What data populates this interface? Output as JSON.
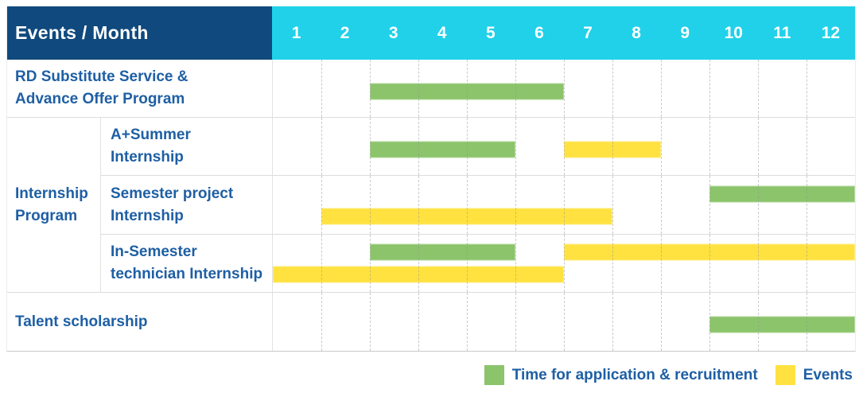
{
  "header": {
    "corner_label": "Events / Month",
    "months": [
      "1",
      "2",
      "3",
      "4",
      "5",
      "6",
      "7",
      "8",
      "9",
      "10",
      "11",
      "12"
    ]
  },
  "colors": {
    "header_navy": "#10497d",
    "header_cyan": "#20d1e9",
    "application_green": "#8bc46a",
    "events_yellow": "#ffe23f",
    "label_blue": "#1e5fa4"
  },
  "legend": {
    "items": [
      {
        "label": "Time for application & recruitment",
        "color_key": "application_green"
      },
      {
        "label": "Events",
        "color_key": "events_yellow"
      }
    ]
  },
  "chart_data": {
    "type": "gantt",
    "unit": "month",
    "x_range": [
      1,
      12
    ],
    "group_label_lines": [
      "Internship",
      "Program"
    ],
    "rows": [
      {
        "label_lines": [
          "RD Substitute Service &",
          "Advance Offer Program"
        ],
        "group": "",
        "bars": [
          {
            "kind": "application & recruitment",
            "color_key": "application_green",
            "start_month": 3,
            "end_month": 6,
            "lane": "middle"
          }
        ]
      },
      {
        "label_lines": [
          "A+Summer",
          "Internship"
        ],
        "group": "Internship Program",
        "bars": [
          {
            "kind": "application & recruitment",
            "color_key": "application_green",
            "start_month": 3,
            "end_month": 5,
            "lane": "middle"
          },
          {
            "kind": "events",
            "color_key": "events_yellow",
            "start_month": 7,
            "end_month": 8,
            "lane": "middle"
          }
        ]
      },
      {
        "label_lines": [
          "Semester project",
          "Internship"
        ],
        "group": "Internship Program",
        "bars": [
          {
            "kind": "application & recruitment",
            "color_key": "application_green",
            "start_month": 10,
            "end_month": 12,
            "lane": "top"
          },
          {
            "kind": "events",
            "color_key": "events_yellow",
            "start_month": 2,
            "end_month": 7,
            "lane": "bottom"
          }
        ]
      },
      {
        "label_lines": [
          "In-Semester",
          "technician Internship"
        ],
        "group": "Internship Program",
        "bars": [
          {
            "kind": "application & recruitment",
            "color_key": "application_green",
            "start_month": 3,
            "end_month": 5,
            "lane": "top"
          },
          {
            "kind": "events",
            "color_key": "events_yellow",
            "start_month": 7,
            "end_month": 12,
            "lane": "top"
          },
          {
            "kind": "events",
            "color_key": "events_yellow",
            "start_month": 1,
            "end_month": 6,
            "lane": "bottom"
          }
        ]
      },
      {
        "label_lines": [
          "Talent scholarship"
        ],
        "group": "",
        "bars": [
          {
            "kind": "application & recruitment",
            "color_key": "application_green",
            "start_month": 10,
            "end_month": 12,
            "lane": "middle"
          }
        ]
      }
    ]
  }
}
